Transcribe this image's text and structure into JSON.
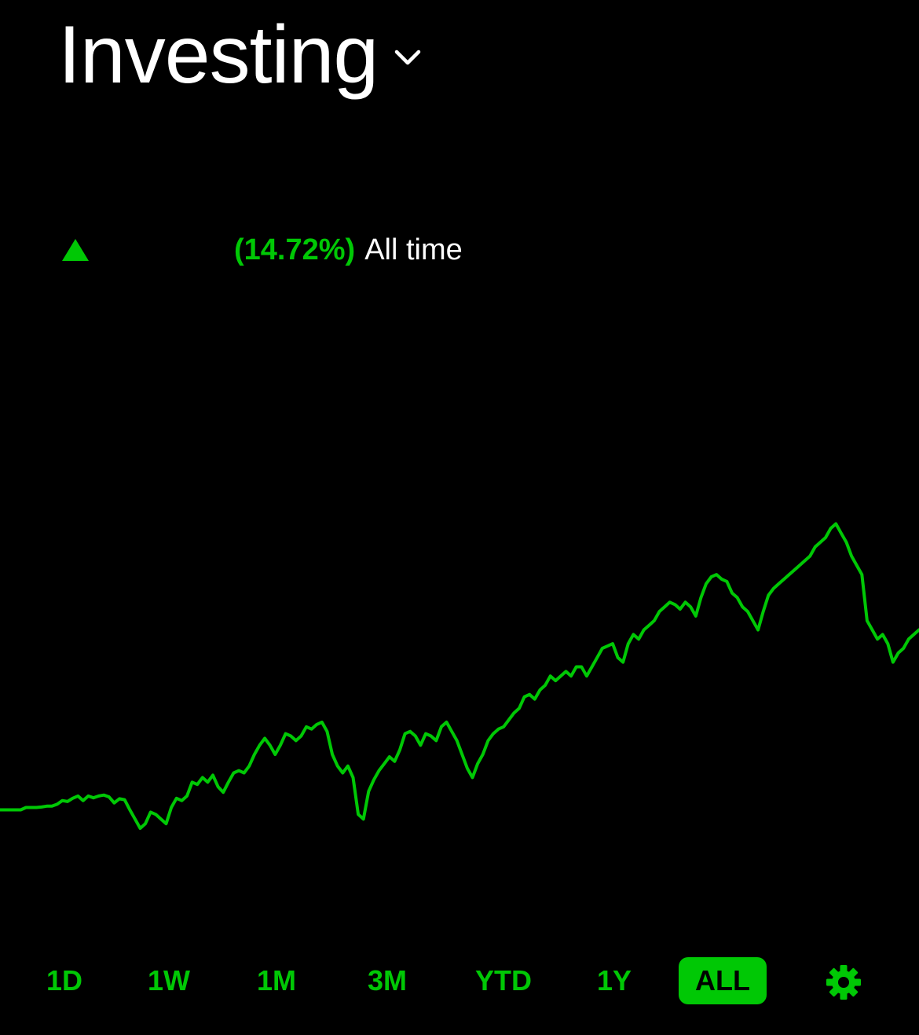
{
  "header": {
    "title": "Investing",
    "dropdown_icon": "chevron-down-icon"
  },
  "performance": {
    "direction_icon": "triangle-up-icon",
    "amount": "",
    "percent": "(14.72%)",
    "period": "All time"
  },
  "colors": {
    "background": "#000000",
    "accent": "#00c805",
    "text": "#ffffff"
  },
  "chart_data": {
    "type": "line",
    "title": "",
    "xlabel": "",
    "ylabel": "",
    "grid": false,
    "legend": "none",
    "ylim": [
      0,
      100
    ],
    "series": [
      {
        "color": "#00c805",
        "values": [
          19.0,
          19.0,
          19.0,
          19.0,
          19.0,
          19.5,
          19.5,
          19.5,
          19.6,
          19.8,
          19.8,
          20.2,
          21.0,
          20.8,
          21.5,
          22.0,
          21.0,
          22.0,
          21.6,
          22.0,
          22.2,
          21.8,
          20.5,
          21.4,
          21.2,
          19.0,
          17.0,
          15.0,
          16.0,
          18.5,
          18.0,
          17.0,
          16.0,
          19.5,
          21.5,
          21.0,
          22.0,
          25.0,
          24.5,
          26.0,
          25.0,
          26.5,
          24.0,
          22.8,
          25.0,
          27.0,
          27.5,
          27.0,
          28.5,
          31.0,
          33.0,
          34.5,
          33.0,
          31.0,
          33.0,
          35.5,
          35.0,
          34.0,
          35.0,
          37.0,
          36.5,
          37.5,
          38.0,
          36.0,
          31.0,
          28.5,
          27.0,
          28.5,
          26.0,
          18.0,
          17.0,
          23.0,
          25.5,
          27.5,
          29.0,
          30.5,
          29.5,
          32.0,
          35.5,
          36.0,
          35.0,
          33.0,
          35.5,
          35.0,
          34.0,
          37.0,
          38.0,
          36.0,
          34.0,
          31.0,
          28.0,
          26.0,
          29.0,
          31.0,
          34.0,
          35.5,
          36.5,
          37.0,
          38.5,
          40.0,
          41.0,
          43.5,
          44.0,
          43.0,
          45.0,
          46.0,
          48.0,
          47.0,
          48.0,
          49.0,
          48.0,
          50.0,
          50.0,
          48.0,
          50.0,
          52.0,
          54.0,
          54.5,
          55.0,
          52.0,
          51.0,
          55.0,
          57.0,
          56.0,
          58.0,
          59.0,
          60.0,
          62.0,
          63.0,
          64.0,
          63.5,
          62.5,
          64.0,
          63.0,
          61.0,
          65.0,
          68.0,
          69.5,
          70.0,
          69.0,
          68.5,
          66.0,
          65.0,
          63.0,
          62.0,
          60.0,
          58.0,
          62.0,
          65.5,
          67.0,
          68.0,
          69.0,
          70.0,
          71.0,
          72.0,
          73.0,
          74.0,
          76.0,
          77.0,
          78.0,
          80.0,
          81.0,
          79.0,
          77.0,
          74.0,
          72.0,
          70.0,
          60.0,
          58.0,
          56.0,
          57.0,
          55.0,
          51.0,
          53.0,
          54.0,
          56.0,
          57.0,
          58.0
        ]
      }
    ]
  },
  "ranges": {
    "items": [
      {
        "label": "1D"
      },
      {
        "label": "1W"
      },
      {
        "label": "1M"
      },
      {
        "label": "3M"
      },
      {
        "label": "YTD"
      },
      {
        "label": "1Y"
      },
      {
        "label": "ALL"
      }
    ],
    "active": "ALL",
    "settings_icon": "gear-icon"
  }
}
